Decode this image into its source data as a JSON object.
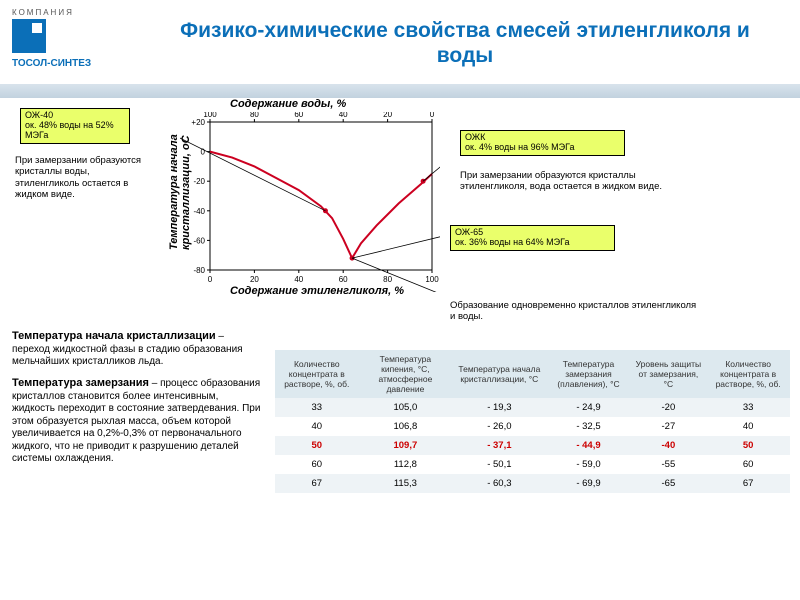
{
  "logo": {
    "company_label": "КОМПАНИЯ",
    "brand": "ТОСОЛ-СИНТЕЗ"
  },
  "title": "Физико-химические свойства смесей этиленгликоля и воды",
  "chart": {
    "type": "line",
    "x_label_top": "Содержание воды, %",
    "x_label_bottom": "Содержание этиленгликоля, %",
    "y_label": "Температура начала\nкристаллизации, оС",
    "x_ticks": [
      0,
      20,
      40,
      60,
      80,
      100
    ],
    "y_ticks": [
      20,
      0,
      -20,
      -40,
      -60,
      -80
    ],
    "ylim": [
      -80,
      20
    ],
    "curve_color": "#cc0020",
    "curve_width": 2,
    "axis_color": "#000",
    "curve_points": [
      [
        0,
        0
      ],
      [
        10,
        -4
      ],
      [
        20,
        -10
      ],
      [
        30,
        -18
      ],
      [
        40,
        -26
      ],
      [
        50,
        -37
      ],
      [
        55,
        -45
      ],
      [
        60,
        -59
      ],
      [
        64,
        -72
      ],
      [
        68,
        -62
      ],
      [
        75,
        -50
      ],
      [
        85,
        -35
      ],
      [
        95,
        -22
      ],
      [
        100,
        -15
      ]
    ],
    "markers": [
      {
        "x": 52,
        "y": -40,
        "color": "#cc0020"
      },
      {
        "x": 64,
        "y": -72,
        "color": "#cc0020"
      },
      {
        "x": 96,
        "y": -20,
        "color": "#cc0020"
      }
    ]
  },
  "callouts": {
    "oz40": {
      "line1": "ОЖ-40",
      "line2": "ок. 48% воды на 52% МЭГа"
    },
    "ozk": {
      "line1": "ОЖК",
      "line2": "ок. 4% воды на 96% МЭГа"
    },
    "oz65": {
      "line1": "ОЖ-65",
      "line2": "ок. 36% воды на 64% МЭГа"
    }
  },
  "notes": {
    "left": "При замерзании образуются кристаллы воды, этиленгликоль остается в жидком виде.",
    "right": "При замерзании образуются кристаллы этиленгликоля, вода остается в жидком виде.",
    "bottom": "Образование одновременно кристаллов этиленгликоля и воды."
  },
  "defs": {
    "t1_term": "Температура начала кристаллизации",
    "t1_rest": " – переход жидкостной фазы в стадию образования мельчайших кристалликов льда.",
    "t2_term": "Температура замерзания",
    "t2_rest": " – процесс образования кристаллов становится более интенсивным, жидкость переходит в состояние затвердевания. При этом образуется рыхлая масса, объем которой увеличивается на 0,2%-0,3% от первоначального жидкого, что не приводит к разрушению деталей системы охлаждения."
  },
  "table": {
    "headers": [
      "Количество концентрата в растворе, %, об.",
      "Температура кипения, °С, атмосферное давление",
      "Температура начала кристаллизации, °С",
      "Температура замерзания (плавления), °С",
      "Уровень защиты от замерзания, °С",
      "Количество концентрата в растворе, %, об."
    ],
    "header_bg": "#dde9ef",
    "row_odd_bg": "#eef3f6",
    "row_even_bg": "#ffffff",
    "highlight_color": "#cc0000",
    "rows": [
      {
        "cells": [
          "33",
          "105,0",
          "- 19,3",
          "- 24,9",
          "-20",
          "33"
        ],
        "hl": false
      },
      {
        "cells": [
          "40",
          "106,8",
          "- 26,0",
          "- 32,5",
          "-27",
          "40"
        ],
        "hl": false
      },
      {
        "cells": [
          "50",
          "109,7",
          "- 37,1",
          "- 44,9",
          "-40",
          "50"
        ],
        "hl": true
      },
      {
        "cells": [
          "60",
          "112,8",
          "- 50,1",
          "- 59,0",
          "-55",
          "60"
        ],
        "hl": false
      },
      {
        "cells": [
          "67",
          "115,3",
          "- 60,3",
          "- 69,9",
          "-65",
          "67"
        ],
        "hl": false
      }
    ]
  }
}
